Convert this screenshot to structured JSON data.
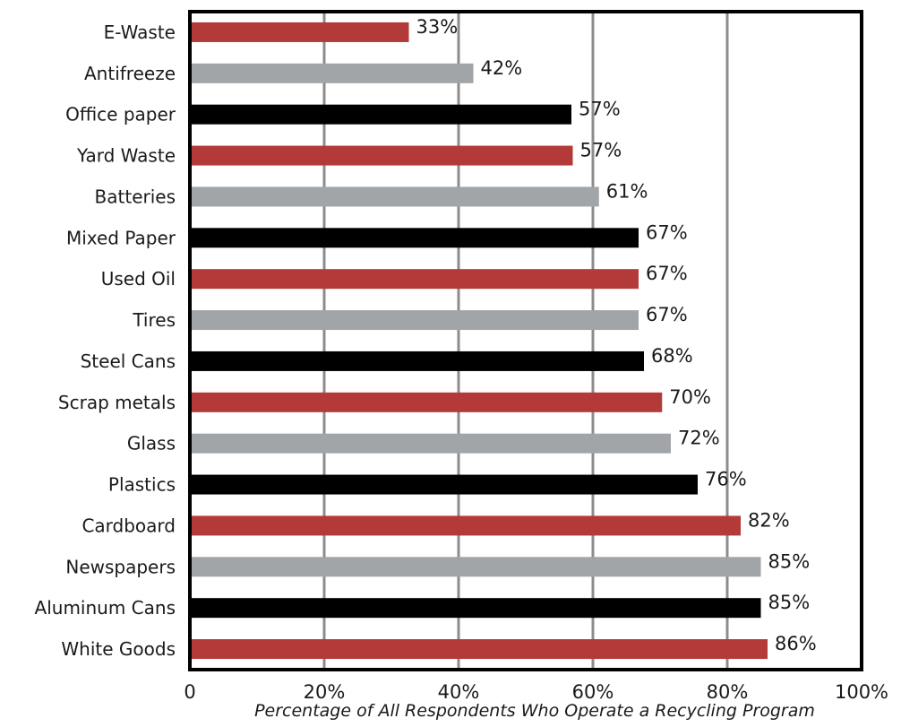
{
  "chart_data": {
    "type": "bar",
    "orientation": "horizontal",
    "categories": [
      "E-Waste",
      "Antifreeze",
      "Office paper",
      "Yard Waste",
      "Batteries",
      "Mixed Paper",
      "Used Oil",
      "Tires",
      "Steel Cans",
      "Scrap metals",
      "Glass",
      "Plastics",
      "Cardboard",
      "Newspapers",
      "Aluminum Cans",
      "White Goods"
    ],
    "values": [
      33,
      42,
      57,
      57,
      61,
      67,
      67,
      67,
      68,
      70,
      72,
      76,
      82,
      85,
      85,
      86
    ],
    "value_labels": [
      "33%",
      "42%",
      "57%",
      "57%",
      "61%",
      "67%",
      "67%",
      "67%",
      "68%",
      "70%",
      "72%",
      "76%",
      "82%",
      "85%",
      "85%",
      "86%"
    ],
    "bar_values": [
      32.6,
      42.2,
      56.8,
      57.0,
      60.9,
      66.8,
      66.8,
      66.8,
      67.6,
      70.3,
      71.6,
      75.6,
      82.0,
      85.0,
      85.0,
      86.0
    ],
    "bar_colors": [
      "#b33a38",
      "#a2a5a8",
      "#000000",
      "#b33a38",
      "#a2a5a8",
      "#000000",
      "#b33a38",
      "#a2a5a8",
      "#000000",
      "#b33a38",
      "#a2a5a8",
      "#000000",
      "#b33a38",
      "#a2a5a8",
      "#000000",
      "#b33a38"
    ],
    "xlabel": "Percentage of All Respondents Who Operate a Recycling Program",
    "ylabel": "",
    "xlim": [
      0,
      100
    ],
    "xticks": [
      0,
      20,
      40,
      60,
      80,
      100
    ],
    "xtick_labels": [
      "0",
      "20%",
      "40%",
      "60%",
      "80%",
      "100%"
    ],
    "grid": true,
    "colors": {
      "red": "#b33a38",
      "gray": "#a2a5a8",
      "black": "#000000",
      "gridline": "#8c8c8c"
    }
  }
}
